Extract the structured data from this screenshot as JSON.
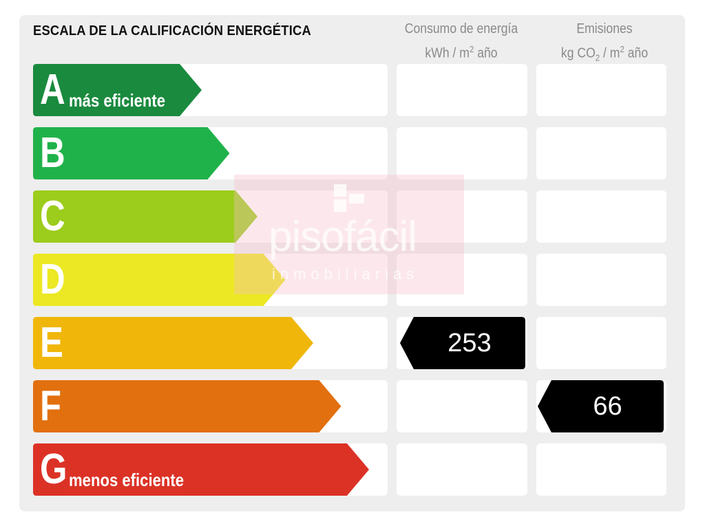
{
  "chart_data": {
    "type": "table",
    "title": "ESCALA DE LA CALIFICACIÓN ENERGÉTICA",
    "columns": [
      {
        "key": "consumo",
        "label_line1": "Consumo de energía",
        "label_line2_pre": "kWh / m",
        "label_line2_sup": "2",
        "label_line2_post": " año"
      },
      {
        "key": "emisiones",
        "label_line1": "Emisiones",
        "label_line2_pre": "kg CO",
        "label_line2_sub": "2",
        "label_line2_mid": " / m",
        "label_line2_sup": "2",
        "label_line2_post": " año"
      }
    ],
    "classes": [
      {
        "letter": "A",
        "sublabel": "más eficiente",
        "color": "#1a8a3e"
      },
      {
        "letter": "B",
        "sublabel": "",
        "color": "#20b24a"
      },
      {
        "letter": "C",
        "sublabel": "",
        "color": "#9ccc1c"
      },
      {
        "letter": "D",
        "sublabel": "",
        "color": "#ece823"
      },
      {
        "letter": "E",
        "sublabel": "",
        "color": "#f0b70a"
      },
      {
        "letter": "F",
        "sublabel": "",
        "color": "#e2700f"
      },
      {
        "letter": "G",
        "sublabel": "menos eficiente",
        "color": "#dc3226"
      }
    ],
    "ratings": {
      "consumo": {
        "class": "E",
        "value": "253"
      },
      "emisiones": {
        "class": "F",
        "value": "66"
      }
    }
  },
  "watermark": {
    "brand": "pisofácil",
    "tagline": "inmobiliarias"
  }
}
